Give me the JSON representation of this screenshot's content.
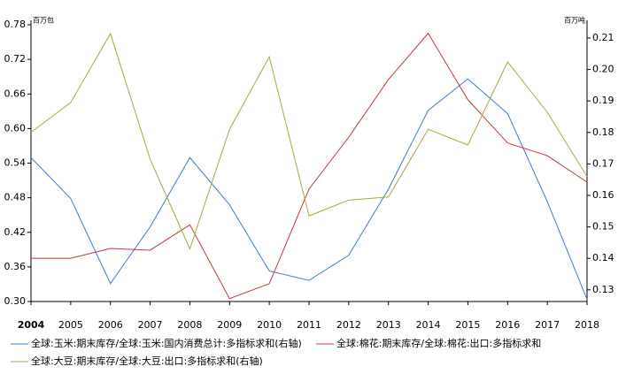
{
  "chart_data": {
    "type": "line",
    "y_label": "百万包",
    "y2_label": "百万吨",
    "x": [
      2004,
      2005,
      2006,
      2007,
      2008,
      2009,
      2010,
      2011,
      2012,
      2013,
      2014,
      2015,
      2016,
      2017,
      2018
    ],
    "xlim": [
      2004,
      2018
    ],
    "xticks": [
      2004,
      2005,
      2006,
      2007,
      2008,
      2009,
      2010,
      2011,
      2012,
      2013,
      2014,
      2015,
      2016,
      2017,
      2018
    ],
    "ylim": [
      0.3,
      0.78
    ],
    "yticks": [
      {
        "value": 0.3,
        "label": "0.30"
      },
      0.36,
      0.42,
      0.48,
      0.54,
      {
        "value": 0.6,
        "label": "0.60"
      },
      0.66,
      0.72,
      0.78
    ],
    "y2lim": [
      0.1263,
      0.2142
    ],
    "y2ticks": [
      0.13,
      0.14,
      0.15,
      0.16,
      0.17,
      0.18,
      0.19,
      {
        "value": 0.2,
        "label": "0.20"
      },
      0.21
    ],
    "series": [
      {
        "name": "全球:玉米:期末库存/全球:玉米:国内消费总计:多指标求和(右轴)",
        "color": "#3a7dc9",
        "axis": "y2",
        "values": [
          0.172,
          0.159,
          0.132,
          0.15,
          0.172,
          0.157,
          0.136,
          0.133,
          0.141,
          0.162,
          0.187,
          0.197,
          0.186,
          0.158,
          0.127
        ]
      },
      {
        "name": "全球:棉花:期末库存/全球:棉花:出口:多指标求和",
        "color": "#c0393b",
        "values": [
          0.375,
          0.375,
          0.392,
          0.389,
          0.433,
          0.305,
          0.331,
          0.495,
          0.585,
          0.685,
          0.765,
          0.65,
          0.575,
          0.553,
          0.507
        ]
      },
      {
        "name": "全球:大豆:期末库存/全球:大豆:出口:多指标求和(右轴)",
        "color": "#a8a83c",
        "axis": "y2",
        "values": [
          0.18,
          0.1895,
          0.2114,
          0.1715,
          0.143,
          0.181,
          0.204,
          0.1535,
          0.1585,
          0.1595,
          0.181,
          0.176,
          0.2024,
          0.1864,
          0.166
        ]
      }
    ]
  }
}
